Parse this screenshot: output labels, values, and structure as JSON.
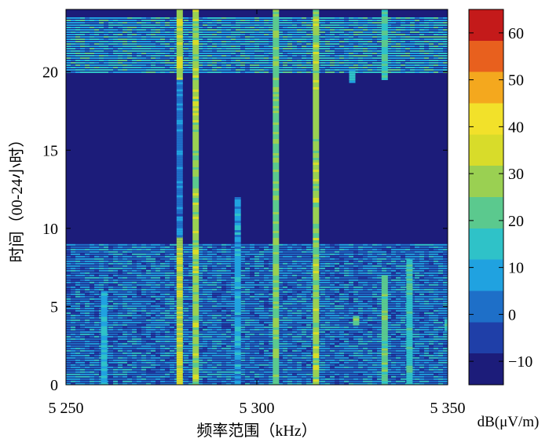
{
  "chart_data": {
    "type": "heatmap",
    "xlabel": "频率范围（kHz）",
    "ylabel": "时间（00-24小时）",
    "xlim": [
      5250,
      5350
    ],
    "ylim": [
      0,
      24
    ],
    "xticks": [
      {
        "value": 5250,
        "label": "5 250"
      },
      {
        "value": 5300,
        "label": "5 300"
      },
      {
        "value": 5350,
        "label": "5 350"
      }
    ],
    "yticks": [
      {
        "value": 0,
        "label": "0"
      },
      {
        "value": 5,
        "label": "5"
      },
      {
        "value": 10,
        "label": "10"
      },
      {
        "value": 15,
        "label": "15"
      },
      {
        "value": 20,
        "label": "20"
      }
    ],
    "colorbar": {
      "label": "dB(μV/m)",
      "range": [
        -15,
        65
      ],
      "ticks": [
        {
          "value": -10,
          "label": "−10"
        },
        {
          "value": 0,
          "label": "0"
        },
        {
          "value": 10,
          "label": "10"
        },
        {
          "value": 20,
          "label": "20"
        },
        {
          "value": 30,
          "label": "30"
        },
        {
          "value": 40,
          "label": "40"
        },
        {
          "value": 50,
          "label": "50"
        },
        {
          "value": 60,
          "label": "60"
        }
      ],
      "colormap": [
        "#1c1c7a",
        "#1f3fa8",
        "#1e6fc8",
        "#20a2e0",
        "#2fc2c8",
        "#5bc98e",
        "#9ad052",
        "#d8dc2a",
        "#f2e12a",
        "#f4a81e",
        "#e8601e",
        "#c41a1a"
      ]
    },
    "background_level": -12,
    "signals": [
      {
        "freq": 5279.8,
        "t_start": 0,
        "t_end": 9.5,
        "level": 32
      },
      {
        "freq": 5279.8,
        "t_start": 19.5,
        "t_end": 24,
        "level": 30
      },
      {
        "freq": 5279.8,
        "t_start": 9.5,
        "t_end": 19.5,
        "level": 3
      },
      {
        "freq": 5284,
        "t_start": 0,
        "t_end": 24,
        "level": 28
      },
      {
        "freq": 5315.5,
        "t_start": 0,
        "t_end": 24,
        "level": 28
      },
      {
        "freq": 5305,
        "t_start": 0,
        "t_end": 24,
        "level": 24
      },
      {
        "freq": 5333.5,
        "t_start": 0,
        "t_end": 7,
        "level": 22
      },
      {
        "freq": 5333.5,
        "t_start": 19.5,
        "t_end": 24,
        "level": 18
      },
      {
        "freq": 5340,
        "t_start": 0,
        "t_end": 8,
        "level": 16
      },
      {
        "freq": 5260,
        "t_start": 0,
        "t_end": 6,
        "level": 12
      },
      {
        "freq": 5295,
        "t_start": 0,
        "t_end": 12,
        "level": 8
      },
      {
        "freq": 5326,
        "t_start": 3.8,
        "t_end": 4.4,
        "level": 24
      },
      {
        "freq": 5325,
        "t_start": 19.4,
        "t_end": 20.2,
        "level": 14
      },
      {
        "freq": 5350,
        "t_start": 3.5,
        "t_end": 4.2,
        "level": 18
      }
    ],
    "bands": [
      {
        "t_start": 0,
        "t_end": 9,
        "level": 6
      },
      {
        "t_start": 20,
        "t_end": 23.5,
        "level": 12
      }
    ]
  }
}
